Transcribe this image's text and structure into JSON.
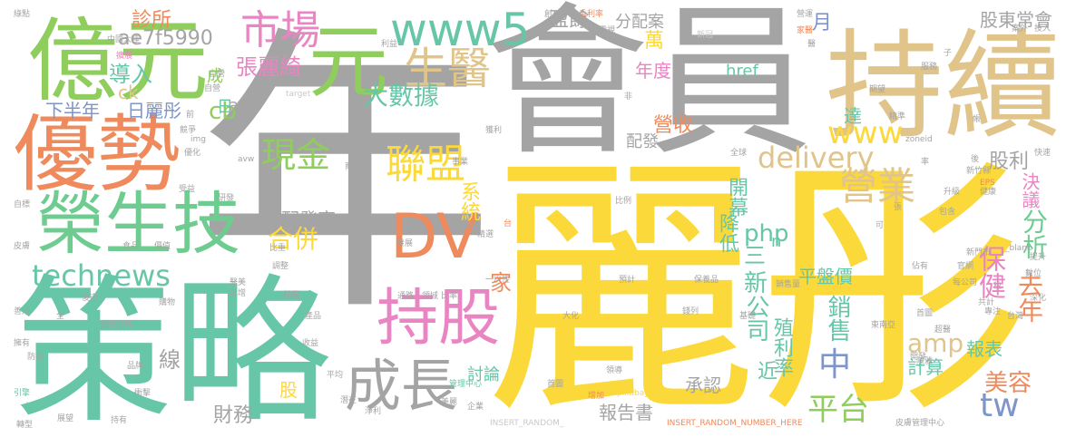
{
  "palette": {
    "gray": "#a4a4a4",
    "yellow": "#fcd93a",
    "green": "#6fcc90",
    "lime": "#8fcd5c",
    "tan": "#e0c48a",
    "orange": "#ef8a5c",
    "pink": "#e985c2",
    "blue": "#7d95c8",
    "teal": "#66c6a7",
    "lightgray": "#c9c9c9",
    "palepink": "#f3a9c8"
  },
  "words": [
    {
      "text": "年",
      "color": "gray"
    },
    {
      "text": "會員",
      "color": "gray"
    },
    {
      "text": "麗彤",
      "color": "yellow"
    },
    {
      "text": "策略",
      "color": "teal"
    },
    {
      "text": "持續",
      "color": "tan"
    },
    {
      "text": "億元",
      "color": "lime"
    },
    {
      "text": "優勢",
      "color": "orange"
    },
    {
      "text": "榮生技",
      "color": "green"
    },
    {
      "text": "元",
      "color": "lime"
    },
    {
      "text": "持股",
      "color": "pink"
    },
    {
      "text": "成長",
      "color": "gray"
    },
    {
      "text": "DV",
      "color": "orange"
    },
    {
      "text": "市場",
      "color": "pink"
    },
    {
      "text": "www5",
      "color": "teal"
    },
    {
      "text": "生醫",
      "color": "tan"
    },
    {
      "text": "聯盟",
      "color": "yellow"
    },
    {
      "text": "technews",
      "color": "teal"
    },
    {
      "text": "現金",
      "color": "lime"
    },
    {
      "text": "www",
      "color": "yellow"
    },
    {
      "text": "delivery",
      "color": "tan"
    },
    {
      "text": "營業",
      "color": "tan"
    },
    {
      "text": "中",
      "color": "blue"
    },
    {
      "text": "平台",
      "color": "lime"
    },
    {
      "text": "tw",
      "color": "blue"
    },
    {
      "text": "amp",
      "color": "tan"
    },
    {
      "text": "美容",
      "color": "orange"
    },
    {
      "text": "去年",
      "color": "orange"
    },
    {
      "text": "分析",
      "color": "green"
    },
    {
      "text": "保健",
      "color": "pink"
    },
    {
      "text": "php",
      "color": "teal"
    },
    {
      "text": "合併",
      "color": "yellow"
    },
    {
      "text": "大數據",
      "color": "teal"
    },
    {
      "text": "張麗綺",
      "color": "pink"
    },
    {
      "text": "ae7f5990",
      "color": "gray"
    },
    {
      "text": "盈餘",
      "color": "gray"
    },
    {
      "text": "診所",
      "color": "orange"
    },
    {
      "text": "導入",
      "color": "teal"
    },
    {
      "text": "cb",
      "color": "lime"
    },
    {
      "text": "ck",
      "color": "tan"
    },
    {
      "text": "下半年",
      "color": "blue"
    },
    {
      "text": "日麗彤",
      "color": "blue"
    },
    {
      "text": "配發率",
      "color": "gray"
    },
    {
      "text": "線",
      "color": "gray"
    },
    {
      "text": "家",
      "color": "orange"
    },
    {
      "text": "新",
      "color": "teal"
    },
    {
      "text": "三",
      "color": "teal"
    },
    {
      "text": "公司",
      "color": "teal"
    },
    {
      "text": "財務",
      "color": "gray"
    },
    {
      "text": "報告書",
      "color": "gray"
    },
    {
      "text": "承認",
      "color": "gray"
    },
    {
      "text": "計算",
      "color": "teal"
    },
    {
      "text": "報表",
      "color": "teal"
    },
    {
      "text": "殖利率",
      "color": "teal"
    },
    {
      "text": "銷售",
      "color": "teal"
    },
    {
      "text": "平盤價",
      "color": "teal"
    },
    {
      "text": "近",
      "color": "teal"
    },
    {
      "text": "股利",
      "color": "gray"
    },
    {
      "text": "決議",
      "color": "pink"
    },
    {
      "text": "股東常會",
      "color": "gray"
    },
    {
      "text": "分配案",
      "color": "gray"
    },
    {
      "text": "href",
      "color": "teal"
    },
    {
      "text": "年度",
      "color": "pink"
    },
    {
      "text": "月",
      "color": "blue"
    },
    {
      "text": "萬",
      "color": "yellow"
    },
    {
      "text": "開幕",
      "color": "teal"
    },
    {
      "text": "降低",
      "color": "teal"
    },
    {
      "text": "營收",
      "color": "orange"
    },
    {
      "text": "系統",
      "color": "yellow"
    },
    {
      "text": "配發",
      "color": "gray"
    },
    {
      "text": "討論",
      "color": "teal"
    },
    {
      "text": "股",
      "color": "yellow"
    },
    {
      "text": "成",
      "color": "lime"
    },
    {
      "text": "日",
      "color": "teal"
    },
    {
      "text": "a",
      "color": "gray"
    },
    {
      "text": "n",
      "color": "teal"
    },
    {
      "text": "達",
      "color": "teal"
    },
    {
      "text": "全球",
      "color": "gray"
    },
    {
      "text": "領導",
      "color": "gray"
    },
    {
      "text": "管理中心",
      "color": "teal"
    },
    {
      "text": "皮膚管理中心",
      "color": "gray"
    },
    {
      "text": "INSERT_RANDOM_",
      "color": "lightgray"
    },
    {
      "text": "INSERT_RANDOM_NUMBER_HERE",
      "color": "orange"
    },
    {
      "text": "pixabay",
      "color": "yellow"
    },
    {
      "text": "增加",
      "color": "orange"
    },
    {
      "text": "首圖",
      "color": "gray"
    },
    {
      "text": "轉型",
      "color": "gray"
    },
    {
      "text": "拉高",
      "color": "teal"
    },
    {
      "text": "引擎",
      "color": "teal"
    },
    {
      "text": "專注",
      "color": "gray"
    },
    {
      "text": "台灣",
      "color": "gray"
    },
    {
      "text": "東南亞",
      "color": "gray"
    },
    {
      "text": "新門市",
      "color": "gray"
    },
    {
      "text": "新竹縣",
      "color": "gray"
    },
    {
      "text": "EPS",
      "color": "gray"
    },
    {
      "text": "zoneid",
      "color": "gray"
    },
    {
      "text": "target",
      "color": "lightgray"
    },
    {
      "text": "avw",
      "color": "gray"
    },
    {
      "text": "img",
      "color": "gray"
    },
    {
      "text": "src",
      "color": "gray"
    },
    {
      "text": "_blank",
      "color": "gray"
    },
    {
      "text": "中國大陸",
      "color": "gray"
    },
    {
      "text": "擴展",
      "color": "pink"
    },
    {
      "text": "毛利率",
      "color": "orange"
    },
    {
      "text": "電視",
      "color": "gray"
    },
    {
      "text": "新冠",
      "color": "lightgray"
    },
    {
      "text": "家醫",
      "color": "orange"
    },
    {
      "text": "營運",
      "color": "gray"
    },
    {
      "text": "服務",
      "color": "gray"
    },
    {
      "text": "期望",
      "color": "gray"
    },
    {
      "text": "健康",
      "color": "gray"
    },
    {
      "text": "升級",
      "color": "gray"
    },
    {
      "text": "包含",
      "color": "gray"
    },
    {
      "text": "醫美診所",
      "color": "gray"
    },
    {
      "text": "食品",
      "color": "gray"
    },
    {
      "text": "價值",
      "color": "gray"
    },
    {
      "text": "皮膚",
      "color": "gray"
    },
    {
      "text": "善用",
      "color": "gray"
    },
    {
      "text": "擁有",
      "color": "gray"
    },
    {
      "text": "防疫",
      "color": "gray"
    },
    {
      "text": "品牌",
      "color": "gray"
    },
    {
      "text": "衝擊",
      "color": "gray"
    },
    {
      "text": "持有",
      "color": "gray"
    },
    {
      "text": "展望",
      "color": "gray"
    },
    {
      "text": "淨利",
      "color": "gray"
    },
    {
      "text": "美麗",
      "color": "gray"
    },
    {
      "text": "企業",
      "color": "gray"
    },
    {
      "text": "比例",
      "color": "gray"
    },
    {
      "text": "一次性",
      "color": "gray"
    },
    {
      "text": "比率",
      "color": "gray"
    },
    {
      "text": "領域",
      "color": "gray"
    },
    {
      "text": "通路",
      "color": "gray"
    },
    {
      "text": "保養品",
      "color": "gray"
    },
    {
      "text": "銷售量",
      "color": "gray"
    },
    {
      "text": "預計",
      "color": "gray"
    },
    {
      "text": "平均",
      "color": "gray"
    },
    {
      "text": "收益",
      "color": "gray"
    },
    {
      "text": "產品",
      "color": "gray"
    },
    {
      "text": "來源",
      "color": "gray"
    },
    {
      "text": "商圈",
      "color": "gray"
    },
    {
      "text": "優化",
      "color": "gray"
    },
    {
      "text": "競爭",
      "color": "gray"
    },
    {
      "text": "事業",
      "color": "gray"
    },
    {
      "text": "獲利",
      "color": "gray"
    },
    {
      "text": "綠點",
      "color": "gray"
    },
    {
      "text": "投入",
      "color": "gray"
    },
    {
      "text": "精準",
      "color": "gray"
    },
    {
      "text": "自營",
      "color": "gray"
    },
    {
      "text": "官網",
      "color": "gray"
    },
    {
      "text": "數位",
      "color": "gray"
    },
    {
      "text": "提升",
      "color": "gray"
    },
    {
      "text": "每公司",
      "color": "gray"
    },
    {
      "text": "案外",
      "color": "gray"
    },
    {
      "text": "深化",
      "color": "gray"
    },
    {
      "text": "共計",
      "color": "gray"
    },
    {
      "text": "快速",
      "color": "gray"
    },
    {
      "text": "研發",
      "color": "gray"
    },
    {
      "text": "自標",
      "color": "gray"
    },
    {
      "text": "帳",
      "color": "gray"
    },
    {
      "text": "非",
      "color": "gray"
    },
    {
      "text": "佔有",
      "color": "gray"
    },
    {
      "text": "後市",
      "color": "gray"
    },
    {
      "text": "購物",
      "color": "gray"
    },
    {
      "text": "歸屬",
      "color": "gray"
    },
    {
      "text": "潛在",
      "color": "gray"
    },
    {
      "text": "大化",
      "color": "gray"
    },
    {
      "text": "錢列",
      "color": "gray"
    },
    {
      "text": "基礎",
      "color": "gray"
    },
    {
      "text": "醫美",
      "color": "gray"
    },
    {
      "text": "調整",
      "color": "gray"
    },
    {
      "text": "比重",
      "color": "gray"
    },
    {
      "text": "年增",
      "color": "gray"
    },
    {
      "text": "發展",
      "color": "gray"
    },
    {
      "text": "精選",
      "color": "gray"
    },
    {
      "text": "自營",
      "color": "gray"
    },
    {
      "text": "受益",
      "color": "gray"
    },
    {
      "text": "首圖",
      "color": "gray"
    },
    {
      "text": "超醫",
      "color": "gray"
    },
    {
      "text": "陳雅",
      "color": "gray"
    },
    {
      "text": "創",
      "color": "gray"
    },
    {
      "text": "利益",
      "color": "gray"
    },
    {
      "text": "開發",
      "color": "gray"
    },
    {
      "text": "前",
      "color": "gray"
    },
    {
      "text": "稅",
      "color": "gray"
    },
    {
      "text": "後",
      "color": "gray"
    },
    {
      "text": "率",
      "color": "gray"
    },
    {
      "text": "醫",
      "color": "gray"
    },
    {
      "text": "子",
      "color": "gray"
    },
    {
      "text": "張",
      "color": "gray"
    },
    {
      "text": "台",
      "color": "gray"
    },
    {
      "text": "全",
      "color": "gray"
    },
    {
      "text": "可",
      "color": "gray"
    }
  ]
}
